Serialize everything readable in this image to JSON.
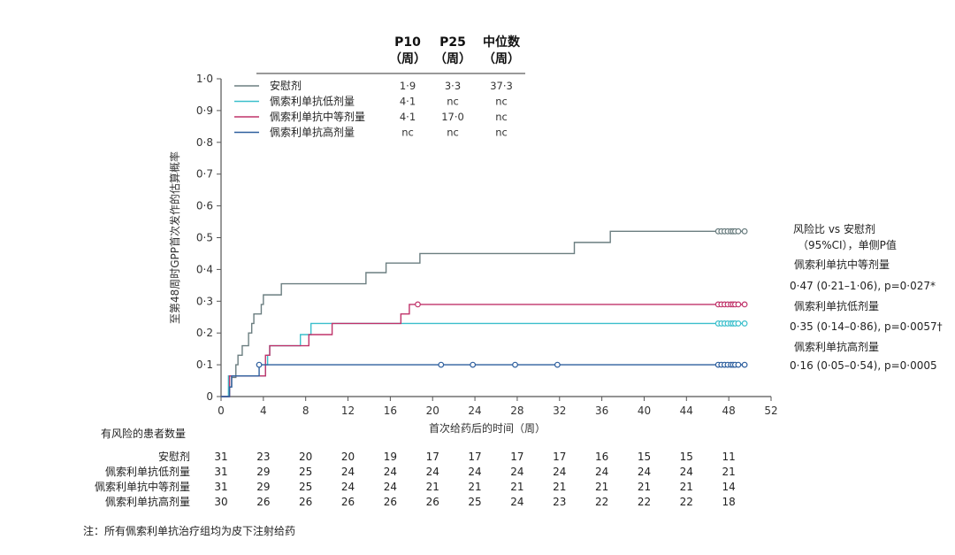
{
  "chart_data": {
    "type": "line",
    "subtype": "kaplan-meier",
    "xlabel": "首次给药后的时间（周）",
    "ylabel": "至第48周时GPP首次发作的估算概率",
    "xlim": [
      0,
      52
    ],
    "ylim": [
      0,
      1.0
    ],
    "xticks": [
      "0",
      "4",
      "8",
      "12",
      "16",
      "20",
      "24",
      "28",
      "32",
      "36",
      "40",
      "44",
      "48",
      "52"
    ],
    "yticks": [
      "0",
      "0·1",
      "0·2",
      "0·3",
      "0·4",
      "0·5",
      "0·6",
      "0·7",
      "0·8",
      "0·9",
      "1·0"
    ],
    "legend_header": {
      "p10": "P10",
      "p25": "P25",
      "median": "中位数",
      "unit": "（周）"
    },
    "series": [
      {
        "name": "安慰剂",
        "color": "#6b7e80",
        "p10": "1·9",
        "p25": "3·3",
        "median": "37·3",
        "steps": [
          [
            0,
            0
          ],
          [
            0.8,
            0.03
          ],
          [
            1,
            0.06
          ],
          [
            1.4,
            0.1
          ],
          [
            1.6,
            0.13
          ],
          [
            2,
            0.16
          ],
          [
            2.6,
            0.2
          ],
          [
            2.9,
            0.23
          ],
          [
            3.1,
            0.26
          ],
          [
            3.8,
            0.29
          ],
          [
            4,
            0.32
          ],
          [
            5.7,
            0.355
          ],
          [
            13.7,
            0.39
          ],
          [
            15.6,
            0.42
          ],
          [
            16.3,
            0.42
          ],
          [
            18.8,
            0.45
          ],
          [
            33.4,
            0.485
          ],
          [
            36.8,
            0.52
          ],
          [
            49.5,
            0.52
          ]
        ],
        "censored": [
          47.0,
          47.3,
          47.6,
          47.9,
          48.2,
          48.4,
          48.6,
          48.9,
          49.5
        ]
      },
      {
        "name": "佩索利单抗低剂量",
        "color": "#3bbfcc",
        "p10": "4·1",
        "p25": "nc",
        "median": "nc",
        "steps": [
          [
            0,
            0
          ],
          [
            0.7,
            0.065
          ],
          [
            4,
            0.065
          ],
          [
            4.2,
            0.1
          ],
          [
            4.4,
            0.13
          ],
          [
            4.6,
            0.16
          ],
          [
            7.5,
            0.195
          ],
          [
            8.5,
            0.23
          ],
          [
            49.5,
            0.23
          ]
        ],
        "censored": [
          47.0,
          47.3,
          47.6,
          47.9,
          48.2,
          48.4,
          48.6,
          48.9,
          49.5
        ]
      },
      {
        "name": "佩索利单抗中等剂量",
        "color": "#c0336a",
        "p10": "4·1",
        "p25": "17·0",
        "median": "nc",
        "steps": [
          [
            0,
            0
          ],
          [
            0.8,
            0.065
          ],
          [
            4,
            0.065
          ],
          [
            4.2,
            0.13
          ],
          [
            4.6,
            0.16
          ],
          [
            8.3,
            0.195
          ],
          [
            10.5,
            0.23
          ],
          [
            17.0,
            0.26
          ],
          [
            17.8,
            0.29
          ],
          [
            49.5,
            0.29
          ]
        ],
        "censored": [
          18.6,
          47.0,
          47.3,
          47.6,
          47.9,
          48.2,
          48.4,
          48.6,
          48.9,
          49.5
        ]
      },
      {
        "name": "佩索利单抗高剂量",
        "color": "#2e5f9e",
        "p10": "nc",
        "p25": "nc",
        "median": "nc",
        "steps": [
          [
            0,
            0
          ],
          [
            0.8,
            0.03
          ],
          [
            1,
            0.065
          ],
          [
            3.6,
            0.1
          ],
          [
            49.5,
            0.1
          ]
        ],
        "censored": [
          3.6,
          20.8,
          23.8,
          27.8,
          31.8,
          47.0,
          47.3,
          47.6,
          47.9,
          48.2,
          48.4,
          48.6,
          48.9,
          49.5
        ]
      }
    ],
    "hazard_ratio": {
      "title_line1": "风险比 vs 安慰剂",
      "title_line2": "（95%CI），单侧P值",
      "entries": [
        {
          "label": "佩索利单抗中等剂量",
          "value": "0·47 (0·21–1·06), p=0·027*"
        },
        {
          "label": "佩索利单抗低剂量",
          "value": "0·35 (0·14–0·86), p=0·0057†"
        },
        {
          "label": "佩索利单抗高剂量",
          "value": "0·16 (0·05–0·54), p=0·0005"
        }
      ]
    },
    "at_risk": {
      "title": "有风险的患者数量",
      "rows": [
        {
          "label": "安慰剂",
          "values": [
            "31",
            "23",
            "20",
            "20",
            "19",
            "17",
            "17",
            "17",
            "17",
            "16",
            "15",
            "15",
            "11"
          ]
        },
        {
          "label": "佩索利单抗低剂量",
          "values": [
            "31",
            "29",
            "25",
            "24",
            "24",
            "24",
            "24",
            "24",
            "24",
            "24",
            "24",
            "24",
            "21"
          ]
        },
        {
          "label": "佩索利单抗中等剂量",
          "values": [
            "31",
            "29",
            "25",
            "24",
            "24",
            "21",
            "21",
            "21",
            "21",
            "21",
            "21",
            "21",
            "14"
          ]
        },
        {
          "label": "佩索利单抗高剂量",
          "values": [
            "30",
            "26",
            "26",
            "26",
            "26",
            "26",
            "25",
            "24",
            "23",
            "22",
            "22",
            "22",
            "18"
          ]
        }
      ]
    },
    "footnote": "注：所有佩索利单抗治疗组均为皮下注射给药"
  }
}
